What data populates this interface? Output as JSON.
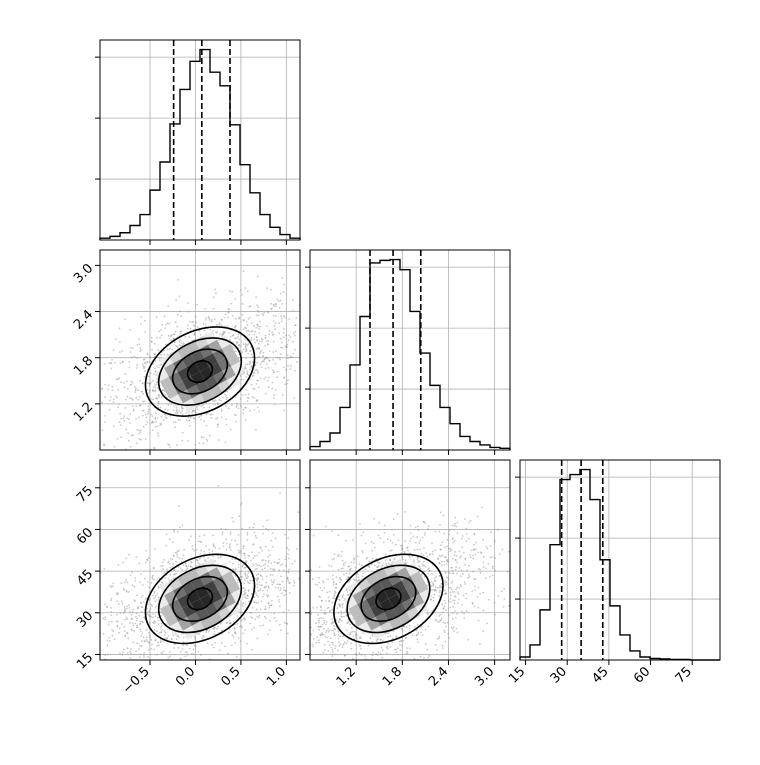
{
  "chart_data": [
    {
      "type": "histogram",
      "panel": "row1-col1",
      "parameter_axis": "x",
      "xlim": [
        -1.05,
        1.15
      ],
      "bin_edges": [
        -1.05,
        -0.94,
        -0.83,
        -0.72,
        -0.61,
        -0.5,
        -0.39,
        -0.28,
        -0.17,
        -0.06,
        0.05,
        0.16,
        0.27,
        0.38,
        0.49,
        0.6,
        0.71,
        0.82,
        0.93,
        1.04,
        1.15
      ],
      "counts": [
        2,
        4,
        8,
        16,
        28,
        55,
        86,
        128,
        166,
        197,
        210,
        185,
        170,
        127,
        83,
        52,
        28,
        14,
        6,
        2
      ],
      "quantiles": [
        -0.24,
        0.07,
        0.38
      ],
      "grid": true
    },
    {
      "type": "scatter-contour",
      "panel": "row2-col1",
      "x_parameter_axis": "x",
      "y_parameter_axis": "y",
      "xlim": [
        -1.05,
        1.15
      ],
      "ylim": [
        0.6,
        3.2
      ],
      "center": [
        0.05,
        1.62
      ],
      "yticks": [
        "1.2",
        "1.8",
        "2.4",
        "3.0"
      ],
      "grid": true
    },
    {
      "type": "histogram",
      "panel": "row2-col2",
      "parameter_axis": "y",
      "xlim": [
        0.6,
        3.2
      ],
      "bin_edges": [
        0.6,
        0.73,
        0.86,
        0.99,
        1.12,
        1.25,
        1.38,
        1.51,
        1.64,
        1.77,
        1.9,
        2.03,
        2.16,
        2.29,
        2.42,
        2.55,
        2.68,
        2.81,
        2.94,
        3.07,
        3.2
      ],
      "counts": [
        4,
        10,
        20,
        50,
        100,
        157,
        220,
        223,
        224,
        212,
        163,
        114,
        76,
        50,
        31,
        16,
        10,
        6,
        3,
        2
      ],
      "quantiles": [
        1.38,
        1.68,
        2.04
      ],
      "grid": true
    },
    {
      "type": "scatter-contour",
      "panel": "row3-col1",
      "x_parameter_axis": "x",
      "y_parameter_axis": "z",
      "xlim": [
        -1.05,
        1.15
      ],
      "ylim": [
        13,
        85
      ],
      "center": [
        0.05,
        35
      ],
      "xticks": [
        "−0.5",
        "0.0",
        "0.5",
        "1.0"
      ],
      "yticks": [
        "15",
        "30",
        "45",
        "60",
        "75"
      ],
      "grid": true
    },
    {
      "type": "scatter-contour",
      "panel": "row3-col2",
      "x_parameter_axis": "y",
      "y_parameter_axis": "z",
      "xlim": [
        0.6,
        3.2
      ],
      "ylim": [
        13,
        85
      ],
      "center": [
        1.62,
        35
      ],
      "xticks": [
        "1.2",
        "1.8",
        "2.4",
        "3.0"
      ],
      "grid": true
    },
    {
      "type": "histogram",
      "panel": "row3-col3",
      "parameter_axis": "z",
      "xlim": [
        13,
        85
      ],
      "bin_edges": [
        13,
        16.6,
        20.2,
        23.8,
        27.4,
        31,
        34.6,
        38.2,
        41.8,
        45.4,
        49,
        52.6,
        56.2,
        59.8,
        63.4,
        67,
        70.6,
        74.2,
        77.8,
        81.4,
        85
      ],
      "counts": [
        6,
        30,
        100,
        230,
        360,
        370,
        380,
        320,
        200,
        108,
        50,
        18,
        6,
        3,
        2,
        1,
        1,
        0,
        0,
        0
      ],
      "quantiles": [
        28,
        35,
        42.8
      ],
      "xticks": [
        "15",
        "30",
        "45",
        "60",
        "75"
      ],
      "grid": true
    }
  ]
}
